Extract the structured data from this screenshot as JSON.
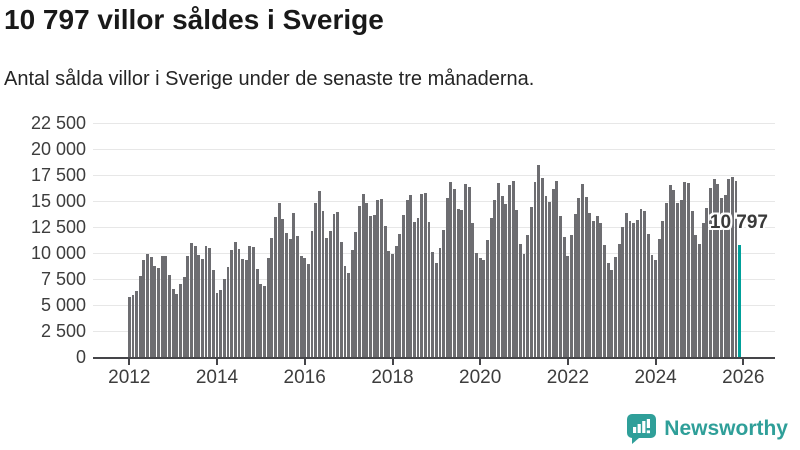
{
  "header": {
    "title": "10 797 villor såldes i Sverige",
    "subtitle": "Antal sålda villor i Sverige under de senaste tre månaderna."
  },
  "footer": {
    "brand": "Newsworthy",
    "logo_color": "#2f9f99",
    "logo_icon": "speech-bubble-bar-chart-icon"
  },
  "chart_data": {
    "type": "bar",
    "title": "10 797 villor såldes i Sverige",
    "subtitle": "Antal sålda villor i Sverige under de senaste tre månaderna.",
    "grid": true,
    "ylim": [
      0,
      22500
    ],
    "y_ticks": [
      0,
      2500,
      5000,
      7500,
      10000,
      12500,
      15000,
      17500,
      20000,
      22500
    ],
    "y_tick_labels": [
      "0",
      "2 500",
      "5 000",
      "7 500",
      "10 000",
      "12 500",
      "15 000",
      "17 500",
      "20 000",
      "22 500"
    ],
    "x_tick_labels": [
      "2012",
      "2014",
      "2016",
      "2018",
      "2020",
      "2022",
      "2024",
      "2026"
    ],
    "start_year": 2012,
    "frequency": "monthly",
    "bar_color": "#6d6d71",
    "highlight_color": "#00a09a",
    "highlight": {
      "index": 167,
      "value": 10797,
      "label": "10 797"
    },
    "values": [
      5770,
      5960,
      6380,
      7820,
      9300,
      9900,
      9620,
      8720,
      8560,
      9740,
      9680,
      7920,
      6570,
      6030,
      6990,
      7690,
      9740,
      10930,
      10710,
      9840,
      9400,
      10640,
      10480,
      8400,
      6150,
      6400,
      7530,
      8650,
      10260,
      11030,
      10400,
      9420,
      9360,
      10710,
      10550,
      8490,
      6990,
      6830,
      9520,
      11440,
      13460,
      14810,
      13300,
      11920,
      11310,
      13850,
      11600,
      9740,
      9520,
      8950,
      12150,
      14810,
      15930,
      14010,
      11440,
      12080,
      13750,
      13910,
      11030,
      8720,
      8080,
      10320,
      11990,
      14550,
      15710,
      14810,
      13530,
      13690,
      15060,
      15190,
      12560,
      10160,
      9950,
      10710,
      11860,
      13650,
      15060,
      15580,
      12950,
      13370,
      15640,
      15770,
      12950,
      10060,
      9040,
      10480,
      12240,
      15290,
      16830,
      16150,
      14200,
      14100,
      16640,
      16380,
      12920,
      10000,
      9500,
      9330,
      11280,
      13350,
      15130,
      16710,
      15500,
      14700,
      16510,
      16920,
      14140,
      10870,
      9950,
      11760,
      14420,
      16860,
      18490,
      17180,
      15450,
      14940,
      16190,
      16890,
      13530,
      11500,
      9700,
      11760,
      13750,
      15260,
      16600,
      15420,
      13850,
      13110,
      13590,
      12890,
      10800,
      9040,
      8400,
      9620,
      10900,
      12500,
      13850,
      13110,
      12900,
      13200,
      14230,
      14070,
      11830,
      9800,
      9350,
      11350,
      13050,
      14800,
      16570,
      16090,
      14800,
      15060,
      16860,
      16730,
      14010,
      11760,
      10900,
      12890,
      14330,
      16250,
      17150,
      16640,
      15290,
      15610,
      17080,
      17280,
      16900,
      10797
    ]
  }
}
